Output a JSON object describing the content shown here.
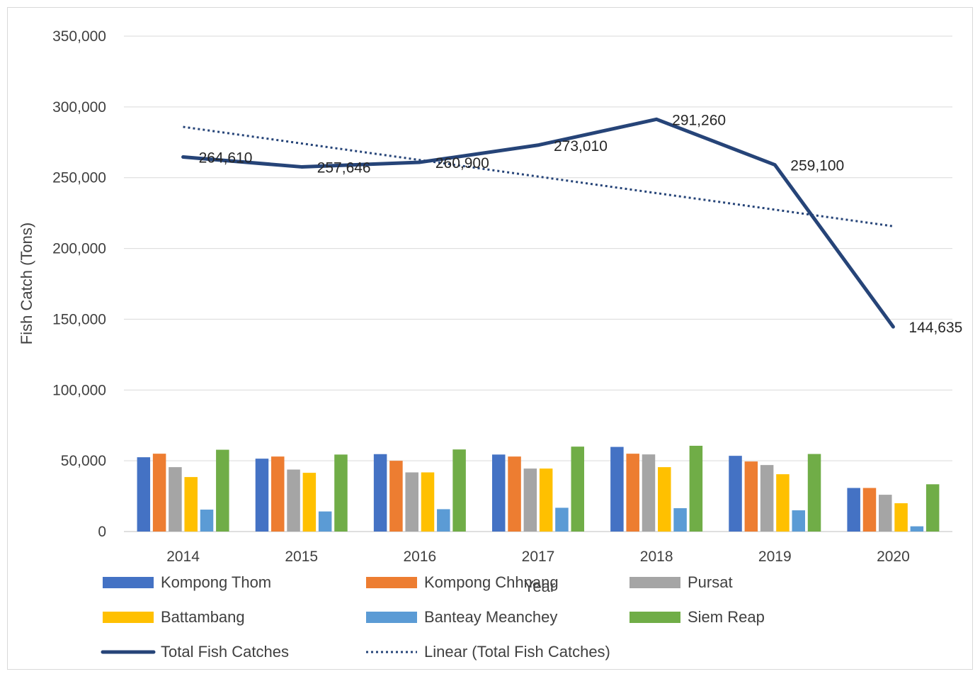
{
  "chart_data": {
    "type": "bar+line",
    "xlabel": "Year",
    "ylabel": "Fish Catch (Tons)",
    "ylim": [
      0,
      350000
    ],
    "yticks": [
      0,
      50000,
      100000,
      150000,
      200000,
      250000,
      300000,
      350000
    ],
    "ytick_labels": [
      "0",
      "50,000",
      "100,000",
      "150,000",
      "200,000",
      "250,000",
      "300,000",
      "350,000"
    ],
    "categories": [
      "2014",
      "2015",
      "2016",
      "2017",
      "2018",
      "2019",
      "2020"
    ],
    "grid": "horizontal",
    "legend_position": "bottom",
    "bar_series": [
      {
        "name": "Kompong Thom",
        "color": "#4472C4",
        "values": [
          52500,
          51500,
          54700,
          54400,
          59800,
          53500,
          30800
        ]
      },
      {
        "name": "Kompong Chhnang",
        "color": "#ED7D31",
        "values": [
          55000,
          53000,
          50000,
          53000,
          55000,
          49500,
          30800
        ]
      },
      {
        "name": "Pursat",
        "color": "#A5A5A5",
        "values": [
          45500,
          43800,
          41800,
          44500,
          54500,
          47000,
          26000
        ]
      },
      {
        "name": "Battambang",
        "color": "#FFC000",
        "values": [
          38500,
          41500,
          41800,
          44500,
          45500,
          40500,
          20000
        ]
      },
      {
        "name": "Banteay Meanchey",
        "color": "#5B9BD5",
        "values": [
          15500,
          14200,
          15800,
          16800,
          16500,
          15000,
          3700
        ]
      },
      {
        "name": "Siem Reap",
        "color": "#70AD47",
        "values": [
          57800,
          54400,
          58000,
          60000,
          60600,
          54800,
          33400
        ]
      }
    ],
    "line_series": {
      "name": "Total Fish Catches",
      "color": "#264478",
      "values": [
        264610,
        257646,
        260900,
        273010,
        291260,
        259100,
        144635
      ],
      "labels": [
        "264,610",
        "257,646",
        "260,900",
        "273,010",
        "291,260",
        "259,100",
        "144,635"
      ]
    },
    "trendline": {
      "name": "Linear (Total Fish Catches)",
      "color": "#264478",
      "start": 285900,
      "end": 215700
    }
  }
}
